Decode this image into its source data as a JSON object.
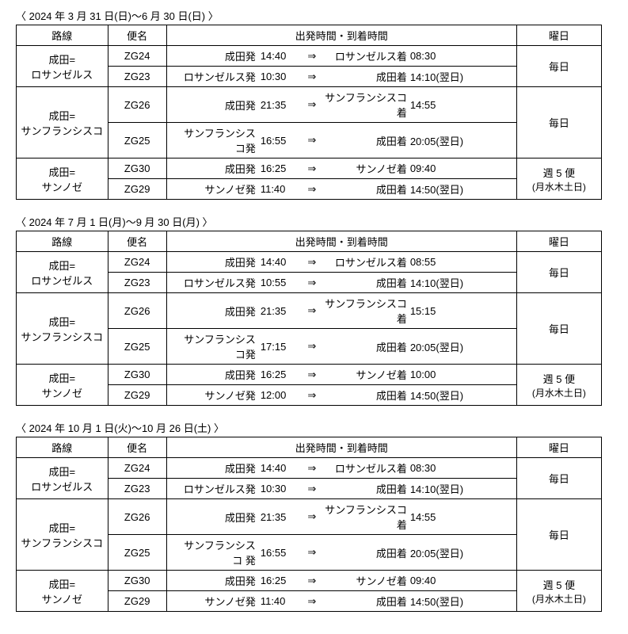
{
  "headers": {
    "route": "路線",
    "flight": "便名",
    "schedule": "出発時間・到着時間",
    "day": "曜日"
  },
  "arrow": "⇒",
  "sections": [
    {
      "period": "〈 2024 年 3 月 31 日(日)～6 月 30 日(日) 〉",
      "routes": [
        {
          "name": "成田=\nロサンゼルス",
          "day": "毎日",
          "flights": [
            {
              "no": "ZG24",
              "depLabel": "成田発",
              "depTime": "14:40",
              "arrLabel": "ロサンゼルス着",
              "arrTime": "08:30"
            },
            {
              "no": "ZG23",
              "depLabel": "ロサンゼルス発",
              "depTime": "10:30",
              "arrLabel": "成田着",
              "arrTime": "14:10(翌日)"
            }
          ]
        },
        {
          "name": "成田=\nサンフランシスコ",
          "day": "毎日",
          "flights": [
            {
              "no": "ZG26",
              "depLabel": "成田発",
              "depTime": "21:35",
              "arrLabel": "サンフランシスコ着",
              "arrTime": "14:55"
            },
            {
              "no": "ZG25",
              "depLabel": "サンフランシスコ発",
              "depTime": "16:55",
              "arrLabel": "成田着",
              "arrTime": "20:05(翌日)"
            }
          ]
        },
        {
          "name": "成田=\nサンノゼ",
          "day": "週 5 便",
          "daySub": "(月水木土日)",
          "flights": [
            {
              "no": "ZG30",
              "depLabel": "成田発",
              "depTime": "16:25",
              "arrLabel": "サンノゼ着",
              "arrTime": "09:40"
            },
            {
              "no": "ZG29",
              "depLabel": "サンノゼ発",
              "depTime": "11:40",
              "arrLabel": "成田着",
              "arrTime": "14:50(翌日)"
            }
          ]
        }
      ]
    },
    {
      "period": "〈 2024 年 7 月 1 日(月)～9 月 30 日(月) 〉",
      "routes": [
        {
          "name": "成田=\nロサンゼルス",
          "day": "毎日",
          "flights": [
            {
              "no": "ZG24",
              "depLabel": "成田発",
              "depTime": "14:40",
              "arrLabel": "ロサンゼルス着",
              "arrTime": "08:55"
            },
            {
              "no": "ZG23",
              "depLabel": "ロサンゼルス発",
              "depTime": "10:55",
              "arrLabel": "成田着",
              "arrTime": "14:10(翌日)"
            }
          ]
        },
        {
          "name": "成田=\nサンフランシスコ",
          "day": "毎日",
          "flights": [
            {
              "no": "ZG26",
              "depLabel": "成田発",
              "depTime": "21:35",
              "arrLabel": "サンフランシスコ着",
              "arrTime": "15:15"
            },
            {
              "no": "ZG25",
              "depLabel": "サンフランシスコ発",
              "depTime": "17:15",
              "arrLabel": "成田着",
              "arrTime": "20:05(翌日)"
            }
          ]
        },
        {
          "name": "成田=\nサンノゼ",
          "day": "週 5 便",
          "daySub": "(月水木土日)",
          "flights": [
            {
              "no": "ZG30",
              "depLabel": "成田発",
              "depTime": "16:25",
              "arrLabel": "サンノゼ着",
              "arrTime": "10:00"
            },
            {
              "no": "ZG29",
              "depLabel": "サンノゼ発",
              "depTime": "12:00",
              "arrLabel": "成田着",
              "arrTime": "14:50(翌日)"
            }
          ]
        }
      ]
    },
    {
      "period": "〈 2024 年 10 月 1 日(火)～10 月 26 日(土) 〉",
      "routes": [
        {
          "name": "成田=\nロサンゼルス",
          "day": "毎日",
          "flights": [
            {
              "no": "ZG24",
              "depLabel": "成田発",
              "depTime": "14:40",
              "arrLabel": "ロサンゼルス着",
              "arrTime": "08:30"
            },
            {
              "no": "ZG23",
              "depLabel": "ロサンゼルス発",
              "depTime": "10:30",
              "arrLabel": "成田着",
              "arrTime": "14:10(翌日)"
            }
          ]
        },
        {
          "name": "成田=\nサンフランシスコ",
          "day": "毎日",
          "flights": [
            {
              "no": "ZG26",
              "depLabel": "成田発",
              "depTime": "21:35",
              "arrLabel": "サンフランシスコ着",
              "arrTime": "14:55"
            },
            {
              "no": "ZG25",
              "depLabel": "サンフランシスコ 発",
              "depTime": "16:55",
              "arrLabel": "成田着",
              "arrTime": "20:05(翌日)"
            }
          ]
        },
        {
          "name": "成田=\nサンノゼ",
          "day": "週 5 便",
          "daySub": "(月水木土日)",
          "flights": [
            {
              "no": "ZG30",
              "depLabel": "成田発",
              "depTime": "16:25",
              "arrLabel": "サンノゼ着",
              "arrTime": "09:40"
            },
            {
              "no": "ZG29",
              "depLabel": "サンノゼ発",
              "depTime": "11:40",
              "arrLabel": "成田着",
              "arrTime": "14:50(翌日)"
            }
          ]
        }
      ]
    }
  ]
}
